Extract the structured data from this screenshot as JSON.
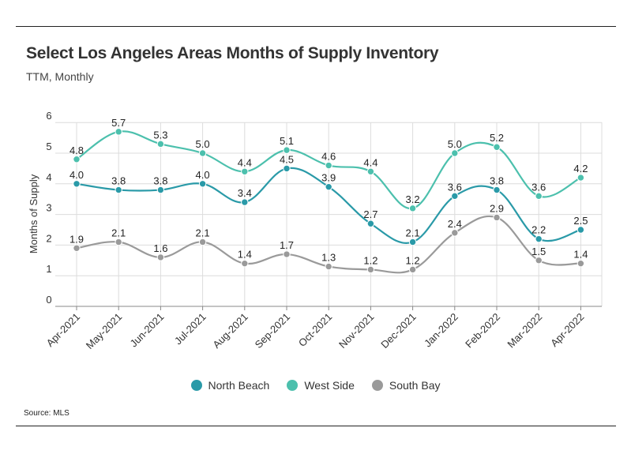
{
  "title": "Select Los Angeles Areas Months of Supply Inventory",
  "subtitle": "TTM, Monthly",
  "source": "Source:  MLS",
  "chart_data": {
    "type": "line",
    "title": "Select Los Angeles Areas Months of Supply Inventory",
    "subtitle": "TTM, Monthly",
    "xlabel": "",
    "ylabel": "Months of Supply",
    "ylim": [
      0,
      6
    ],
    "yticks": [
      0,
      1,
      2,
      3,
      4,
      5,
      6
    ],
    "grid": "vertical",
    "legend_position": "bottom",
    "categories": [
      "Apr-2021",
      "May-2021",
      "Jun-2021",
      "Jul-2021",
      "Aug-2021",
      "Sep-2021",
      "Oct-2021",
      "Nov-2021",
      "Dec-2021",
      "Jan-2022",
      "Feb-2022",
      "Mar-2022",
      "Apr-2022"
    ],
    "series": [
      {
        "name": "North Beach",
        "color": "#2a9aa8",
        "values": [
          4.0,
          3.8,
          3.8,
          4.0,
          3.4,
          4.5,
          3.9,
          2.7,
          2.1,
          3.6,
          3.8,
          2.2,
          2.5
        ]
      },
      {
        "name": "West Side",
        "color": "#4cc0ad",
        "values": [
          4.8,
          5.7,
          5.3,
          5.0,
          4.4,
          5.1,
          4.6,
          4.4,
          3.2,
          5.0,
          5.2,
          3.6,
          4.2
        ]
      },
      {
        "name": "South Bay",
        "color": "#9a9a9a",
        "values": [
          1.9,
          2.1,
          1.6,
          2.1,
          1.4,
          1.7,
          1.3,
          1.2,
          1.2,
          2.4,
          2.9,
          1.5,
          1.4
        ]
      }
    ]
  }
}
